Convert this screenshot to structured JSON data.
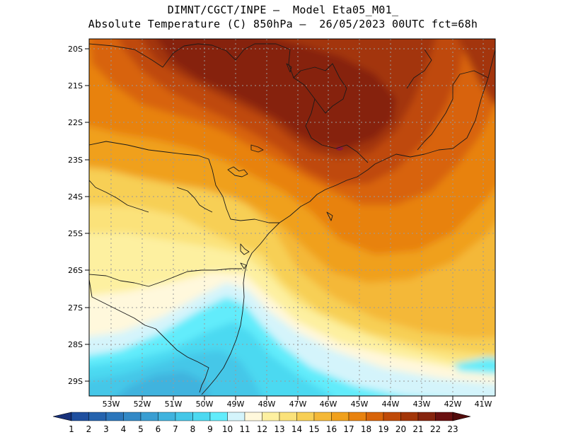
{
  "title_line1": "DIMNT/CGCT/INPE –  Model Eta05_M01_",
  "title_line2": "Absolute Temperature (C) 850hPa –  26/05/2023 00UTC fct=68h",
  "lat_labels": [
    "20S",
    "21S",
    "22S",
    "23S",
    "24S",
    "25S",
    "26S",
    "27S",
    "28S",
    "29S"
  ],
  "lon_labels": [
    "53W",
    "52W",
    "51W",
    "50W",
    "49W",
    "48W",
    "47W",
    "46W",
    "45W",
    "44W",
    "43W",
    "42W",
    "41W"
  ],
  "colorbar": {
    "labels": [
      "1",
      "2",
      "3",
      "4",
      "5",
      "6",
      "7",
      "8",
      "9",
      "10",
      "11",
      "12",
      "13",
      "14",
      "15",
      "16",
      "17",
      "18",
      "19",
      "20",
      "21",
      "22",
      "23"
    ],
    "colors": [
      "#1e3f8f",
      "#1f4f9f",
      "#2563ae",
      "#2c76bb",
      "#3389c6",
      "#3a9ed2",
      "#40b3de",
      "#45c7e8",
      "#4cd9f1",
      "#62ecfb",
      "#d4f4fb",
      "#fff8dc",
      "#fdf0a0",
      "#fbe27a",
      "#f7cf55",
      "#f4b837",
      "#f0a01c",
      "#e8820f",
      "#d8640a",
      "#bf4a08",
      "#a33609",
      "#86240e",
      "#6a1010"
    ],
    "low_color": "#17307a",
    "high_color": "#520a0a"
  }
}
